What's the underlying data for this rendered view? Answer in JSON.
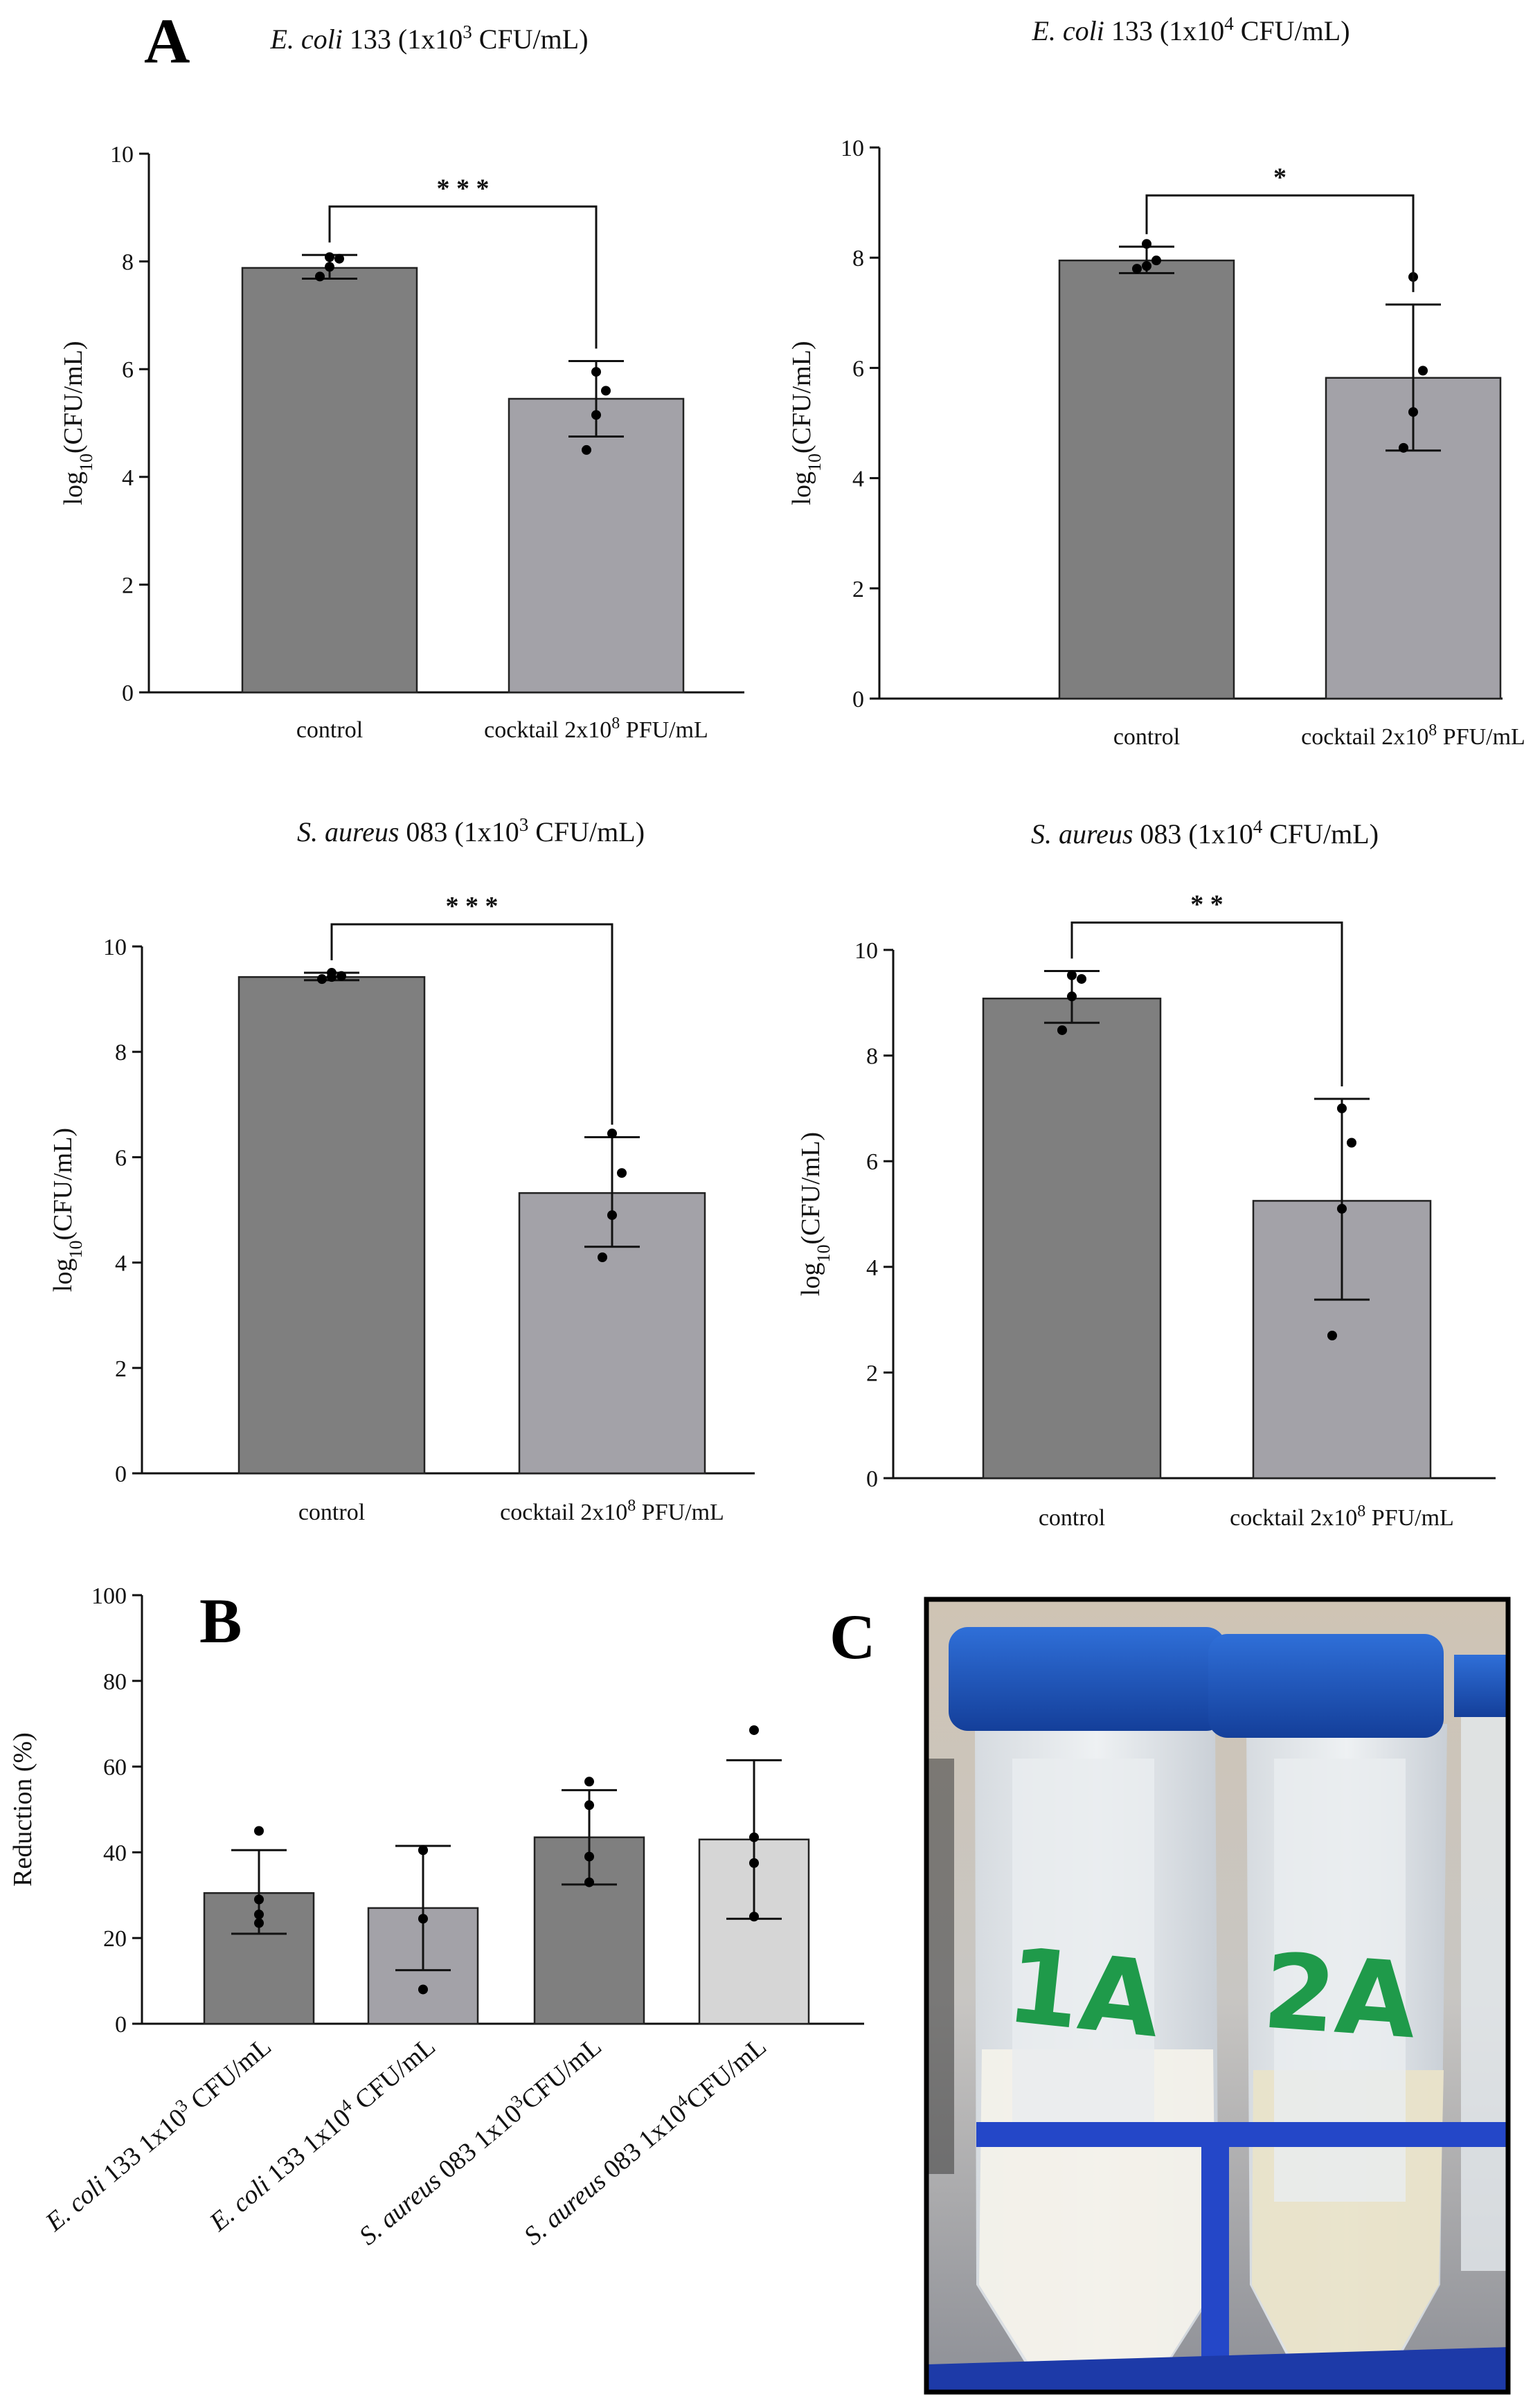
{
  "panels": {
    "a": "A",
    "b": "B",
    "c": "C"
  },
  "colors": {
    "dark_bar": "#7f7f7f",
    "mid_bar": "#a3a2a8",
    "light_bar": "#d6d6d6",
    "axis": "#111111"
  },
  "photo": {
    "tube_labels": [
      "1A",
      "2A"
    ],
    "description_colors": {
      "cap": "#1f5bc4",
      "rack": "#2447c8",
      "ink": "#1f9a4a"
    }
  },
  "chart_data": [
    {
      "id": "a1",
      "type": "bar",
      "title": {
        "italic": "E. coli",
        "rest_pre": " 133 (1x10",
        "sup": "3",
        "rest_post": " CFU/mL)"
      },
      "ylabel": {
        "pre": "log",
        "sub": "10",
        "post": "(CFU/mL)"
      },
      "categories": [
        {
          "text": "control"
        },
        {
          "pre": "cocktail 2x10",
          "sup": "8",
          "post": " PFU/mL"
        }
      ],
      "values": [
        7.88,
        5.45
      ],
      "err_low": [
        7.68,
        4.75
      ],
      "err_high": [
        8.12,
        6.15
      ],
      "points": [
        [
          7.72,
          7.9,
          8.05,
          8.08
        ],
        [
          4.5,
          5.15,
          5.6,
          5.95
        ]
      ],
      "ylim": [
        0,
        10
      ],
      "yticks": [
        0,
        2,
        4,
        6,
        8,
        10
      ],
      "significance": "* * *",
      "bar_colors": [
        "#7f7f7f",
        "#a3a2a8"
      ]
    },
    {
      "id": "a2",
      "type": "bar",
      "title": {
        "italic": "E. coli",
        "rest_pre": " 133 (1x10",
        "sup": "4",
        "rest_post": " CFU/mL)"
      },
      "ylabel": {
        "pre": "log",
        "sub": "10",
        "post": "(CFU/mL)"
      },
      "categories": [
        {
          "text": "control"
        },
        {
          "pre": "cocktail 2x10",
          "sup": "8",
          "post": " PFU/mL"
        }
      ],
      "values": [
        7.95,
        5.82
      ],
      "err_low": [
        7.72,
        4.5
      ],
      "err_high": [
        8.2,
        7.15
      ],
      "points": [
        [
          7.8,
          7.85,
          7.95,
          8.25
        ],
        [
          4.55,
          5.2,
          5.95,
          7.65
        ]
      ],
      "ylim": [
        0,
        10
      ],
      "yticks": [
        0,
        2,
        4,
        6,
        8,
        10
      ],
      "significance": "*",
      "bar_colors": [
        "#7f7f7f",
        "#a3a2a8"
      ]
    },
    {
      "id": "a3",
      "type": "bar",
      "title": {
        "italic": "S. aureus",
        "rest_pre": " 083 (1x10",
        "sup": "3",
        "rest_post": " CFU/mL)"
      },
      "ylabel": {
        "pre": "log",
        "sub": "10",
        "post": "(CFU/mL)"
      },
      "categories": [
        {
          "text": "control"
        },
        {
          "pre": "cocktail 2x10",
          "sup": "8",
          "post": " PFU/mL"
        }
      ],
      "values": [
        9.42,
        5.32
      ],
      "err_low": [
        9.36,
        4.3
      ],
      "err_high": [
        9.5,
        6.38
      ],
      "points": [
        [
          9.38,
          9.42,
          9.44,
          9.5
        ],
        [
          4.1,
          4.9,
          5.7,
          6.45
        ]
      ],
      "ylim": [
        0,
        10
      ],
      "yticks": [
        0,
        2,
        4,
        6,
        8,
        10
      ],
      "significance": "* * *",
      "bar_colors": [
        "#7f7f7f",
        "#a3a2a8"
      ]
    },
    {
      "id": "a4",
      "type": "bar",
      "title": {
        "italic": "S. aureus",
        "rest_pre": " 083 (1x10",
        "sup": "4",
        "rest_post": " CFU/mL)"
      },
      "ylabel": {
        "pre": "log",
        "sub": "10",
        "post": "(CFU/mL)"
      },
      "categories": [
        {
          "text": "control"
        },
        {
          "pre": "cocktail 2x10",
          "sup": "8",
          "post": " PFU/mL"
        }
      ],
      "values": [
        9.08,
        5.25
      ],
      "err_low": [
        8.62,
        3.38
      ],
      "err_high": [
        9.6,
        7.18
      ],
      "points": [
        [
          8.48,
          9.12,
          9.45,
          9.52
        ],
        [
          2.7,
          5.1,
          6.35,
          7.0
        ]
      ],
      "ylim": [
        0,
        10
      ],
      "yticks": [
        0,
        2,
        4,
        6,
        8,
        10
      ],
      "significance": "* *",
      "bar_colors": [
        "#7f7f7f",
        "#a3a2a8"
      ]
    },
    {
      "id": "b",
      "type": "bar",
      "title": "",
      "ylabel": {
        "pre": "Reduction (%)",
        "sub": "",
        "post": ""
      },
      "categories": [
        {
          "italic": "E. coli",
          "pre": " 133 1x10",
          "sup": "3",
          "post": " CFU/mL"
        },
        {
          "italic": "E. coli",
          "pre": " 133 1x10",
          "sup": "4",
          "post": " CFU/mL"
        },
        {
          "italic": "S. aureus",
          "pre": " 083 1x10",
          "sup": "3",
          "post": "CFU/mL"
        },
        {
          "italic": "S. aureus",
          "pre": " 083  1x10",
          "sup": "4",
          "post": "CFU/mL"
        }
      ],
      "values": [
        30.5,
        27.0,
        43.5,
        43.0
      ],
      "err_low": [
        21.0,
        12.5,
        32.5,
        24.5
      ],
      "err_high": [
        40.5,
        41.5,
        54.5,
        61.5
      ],
      "points": [
        [
          23.5,
          25.5,
          29.0,
          45.0
        ],
        [
          8.0,
          24.5,
          40.5,
          40.5
        ],
        [
          33.0,
          39.0,
          51.0,
          56.5
        ],
        [
          25.0,
          37.5,
          43.5,
          68.5
        ]
      ],
      "ylim": [
        0,
        100
      ],
      "yticks": [
        0,
        20,
        40,
        60,
        80,
        100
      ],
      "bar_colors": [
        "#7f7f7f",
        "#a3a2a8",
        "#7f7f7f",
        "#d6d6d6"
      ]
    }
  ]
}
